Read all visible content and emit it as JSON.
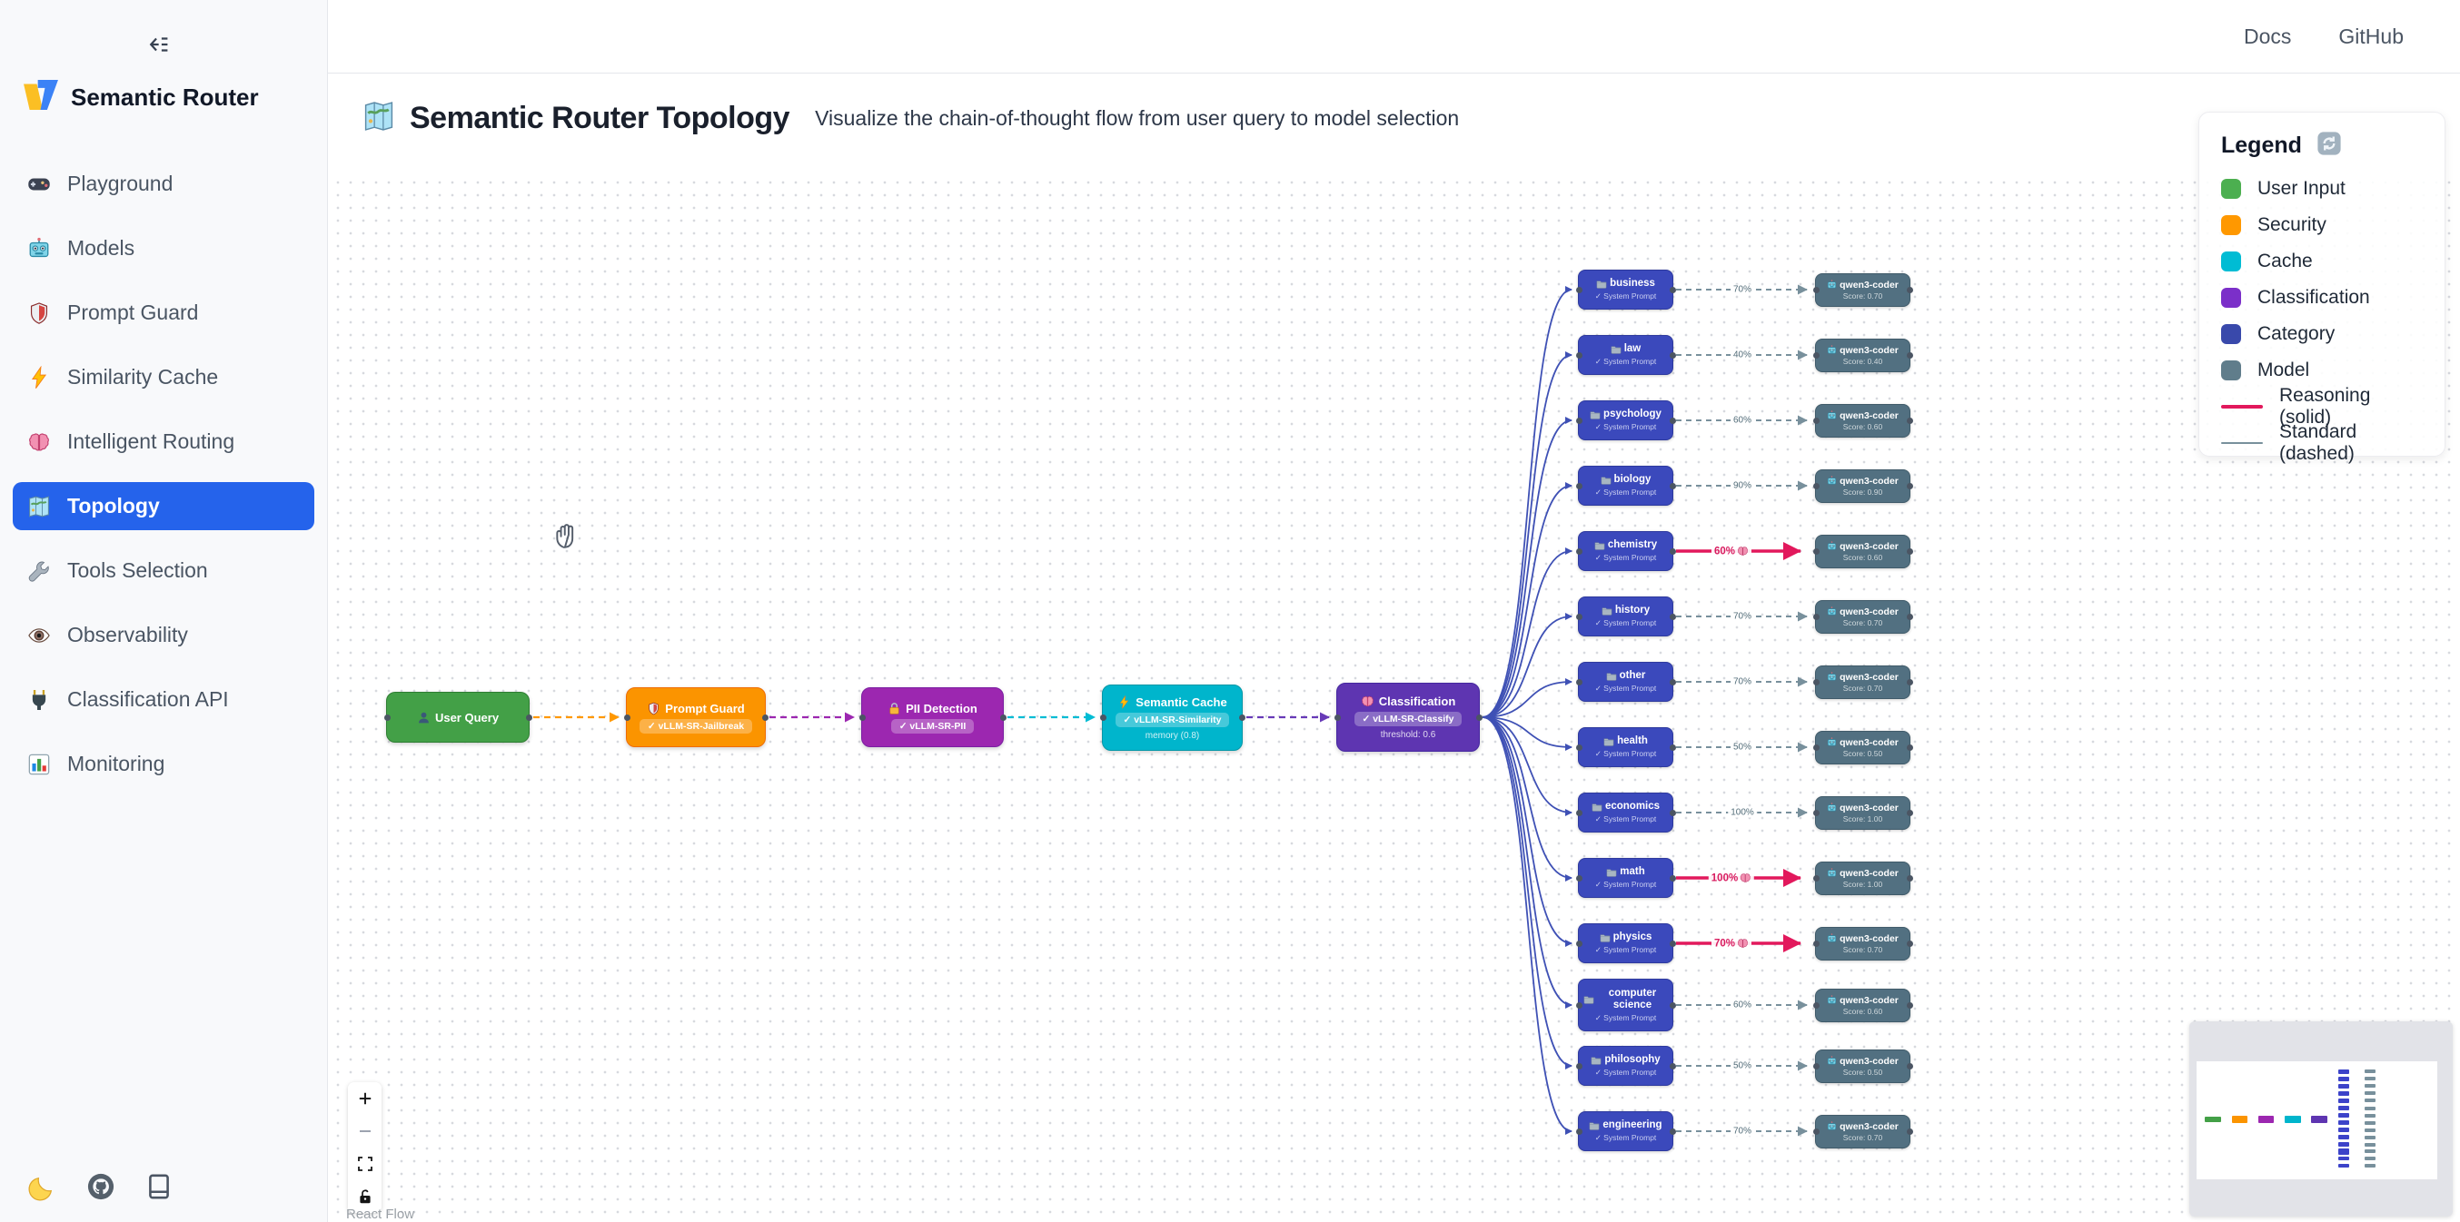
{
  "sidebar": {
    "logo_title": "Semantic Router",
    "collapse_icon": "collapse-sidebar-icon",
    "items": [
      {
        "icon": "gamepad",
        "label": "Playground",
        "active": false
      },
      {
        "icon": "robot",
        "label": "Models",
        "active": false
      },
      {
        "icon": "shield",
        "label": "Prompt Guard",
        "active": false
      },
      {
        "icon": "bolt",
        "label": "Similarity Cache",
        "active": false
      },
      {
        "icon": "brain",
        "label": "Intelligent Routing",
        "active": false
      },
      {
        "icon": "map",
        "label": "Topology",
        "active": true
      },
      {
        "icon": "wrench",
        "label": "Tools Selection",
        "active": false
      },
      {
        "icon": "eye",
        "label": "Observability",
        "active": false
      },
      {
        "icon": "plug",
        "label": "Classification API",
        "active": false
      },
      {
        "icon": "chart",
        "label": "Monitoring",
        "active": false
      }
    ],
    "footer_icons": [
      "moon",
      "github",
      "book"
    ]
  },
  "topbar": {
    "links": [
      "Docs",
      "GitHub"
    ]
  },
  "header": {
    "title": "Semantic Router Topology",
    "subtitle": "Visualize the chain-of-thought flow from user query to model selection"
  },
  "legend": {
    "title": "Legend",
    "refresh_icon": "refresh-icon",
    "items": [
      {
        "label": "User Input",
        "color": "#4caf50"
      },
      {
        "label": "Security",
        "color": "#ff9800"
      },
      {
        "label": "Cache",
        "color": "#00bcd4"
      },
      {
        "label": "Classification",
        "color": "#7b2fc9"
      },
      {
        "label": "Category",
        "color": "#3949ab"
      },
      {
        "label": "Model",
        "color": "#607d8b"
      }
    ],
    "lines": [
      {
        "label": "Reasoning (solid)",
        "color": "#e2185c",
        "dashed": false
      },
      {
        "label": "Standard (dashed)",
        "color": "#78909c",
        "dashed": true
      }
    ]
  },
  "flow": {
    "pipeline": [
      {
        "title": "User Query",
        "icon": "person",
        "badge": "",
        "subtitle": "",
        "color": "#43a047",
        "border": "#2e7d32",
        "edge_color": "#ff9800"
      },
      {
        "title": "Prompt Guard",
        "icon": "shield",
        "badge": "✓ vLLM-SR-Jailbreak",
        "subtitle": "",
        "color": "#fb9400",
        "border": "#ef6c00",
        "edge_color": "#9c27b0"
      },
      {
        "title": "PII Detection",
        "icon": "lock",
        "badge": "✓ vLLM-SR-PII",
        "subtitle": "",
        "color": "#9c27b0",
        "border": "#7b1fa2",
        "edge_color": "#00bcd4"
      },
      {
        "title": "Semantic Cache",
        "icon": "bolt",
        "badge": "✓ vLLM-SR-Similarity",
        "subtitle": "memory (0.8)",
        "color": "#00b5cc",
        "border": "#0097a7",
        "edge_color": "#673ab7"
      },
      {
        "title": "Classification",
        "icon": "brain",
        "badge": "✓ vLLM-SR-Classify",
        "subtitle": "threshold: 0.6",
        "color": "#5e35b1",
        "border": "#4527a0",
        "edge_color": "#3f51b5"
      }
    ],
    "category_subtitle": "✓ System Prompt",
    "model_name": "qwen3-coder",
    "categories": [
      {
        "name": "business",
        "match": "70%",
        "score": "Score: 0.70",
        "reasoning": false
      },
      {
        "name": "law",
        "match": "40%",
        "score": "Score: 0.40",
        "reasoning": false
      },
      {
        "name": "psychology",
        "match": "60%",
        "score": "Score: 0.60",
        "reasoning": false
      },
      {
        "name": "biology",
        "match": "90%",
        "score": "Score: 0.90",
        "reasoning": false
      },
      {
        "name": "chemistry",
        "match": "60%",
        "score": "Score: 0.60",
        "reasoning": true
      },
      {
        "name": "history",
        "match": "70%",
        "score": "Score: 0.70",
        "reasoning": false
      },
      {
        "name": "other",
        "match": "70%",
        "score": "Score: 0.70",
        "reasoning": false
      },
      {
        "name": "health",
        "match": "50%",
        "score": "Score: 0.50",
        "reasoning": false
      },
      {
        "name": "economics",
        "match": "100%",
        "score": "Score: 1.00",
        "reasoning": false
      },
      {
        "name": "math",
        "match": "100%",
        "score": "Score: 1.00",
        "reasoning": true
      },
      {
        "name": "physics",
        "match": "70%",
        "score": "Score: 0.70",
        "reasoning": true
      },
      {
        "name": "computer science",
        "match": "60%",
        "score": "Score: 0.60",
        "reasoning": false
      },
      {
        "name": "philosophy",
        "match": "50%",
        "score": "Score: 0.50",
        "reasoning": false
      },
      {
        "name": "engineering",
        "match": "70%",
        "score": "Score: 0.70",
        "reasoning": false
      }
    ],
    "colors": {
      "category": "#3b49bc",
      "category_border": "#2e3a9e",
      "model": "#527081",
      "model_border": "#405b6a",
      "reasoning": "#e2185c",
      "standard": "#78909c",
      "fan_edge": "#3f51b5"
    }
  },
  "controls": [
    "zoom-in",
    "zoom-out",
    "fit-view",
    "lock"
  ],
  "attribution": "React Flow"
}
